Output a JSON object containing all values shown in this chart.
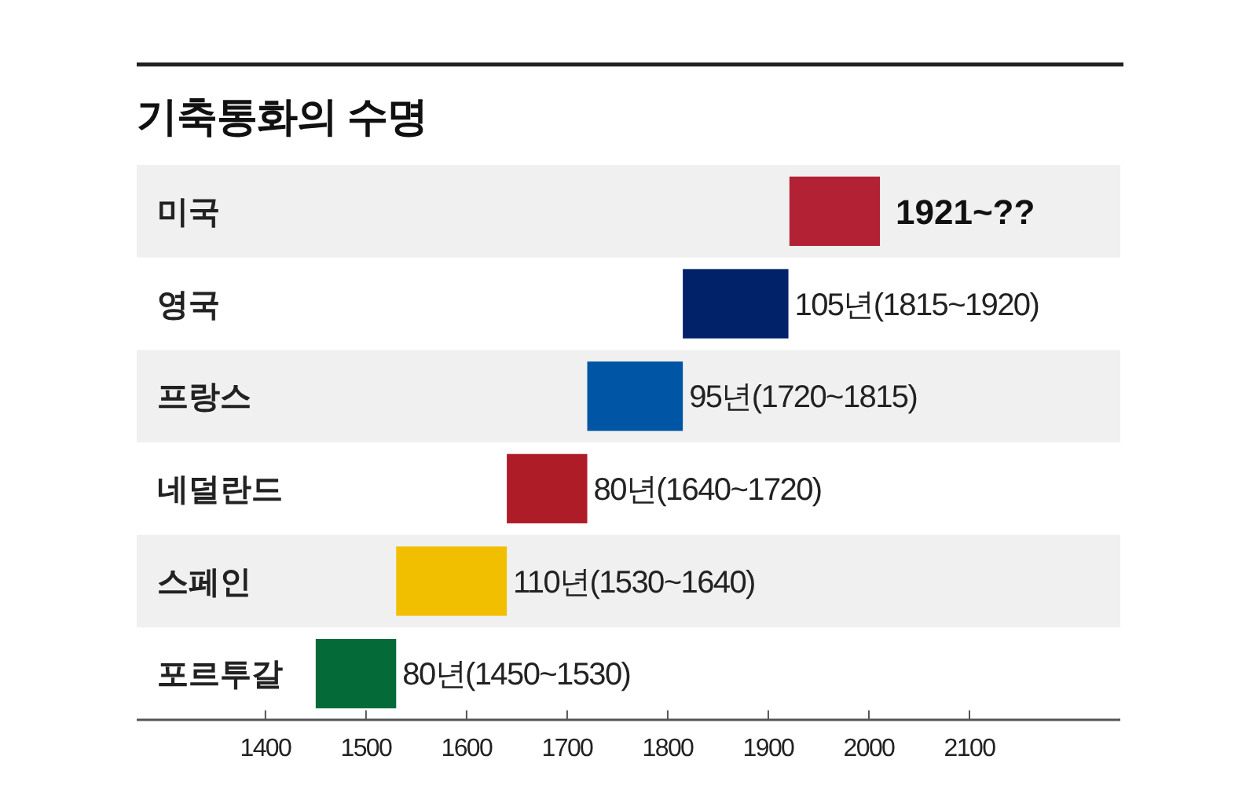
{
  "chart_data": {
    "type": "bar",
    "orientation": "horizontal",
    "title": "기축통화의 수명",
    "categories": [
      "미국",
      "영국",
      "프랑스",
      "네덜란드",
      "스페인",
      "포르투갈"
    ],
    "base": [
      1921,
      1815,
      1720,
      1640,
      1530,
      1450
    ],
    "values": [
      90,
      105,
      95,
      80,
      110,
      80
    ],
    "colors": [
      "#b22234",
      "#012169",
      "#0055a4",
      "#ae1c28",
      "#f1bf00",
      "#046a38"
    ],
    "value_labels": [
      null,
      "105년(1815~1920)",
      "95년(1720~1815)",
      "80년(1640~1720)",
      "110년(1530~1640)",
      "80년(1450~1530)"
    ],
    "annotations": [
      {
        "text": "1921~??",
        "x": 2011,
        "y": "미국"
      }
    ],
    "xlim": [
      1272,
      2250
    ],
    "xticks": [
      1400,
      1500,
      1600,
      1700,
      1800,
      1900,
      2000,
      2100
    ]
  }
}
